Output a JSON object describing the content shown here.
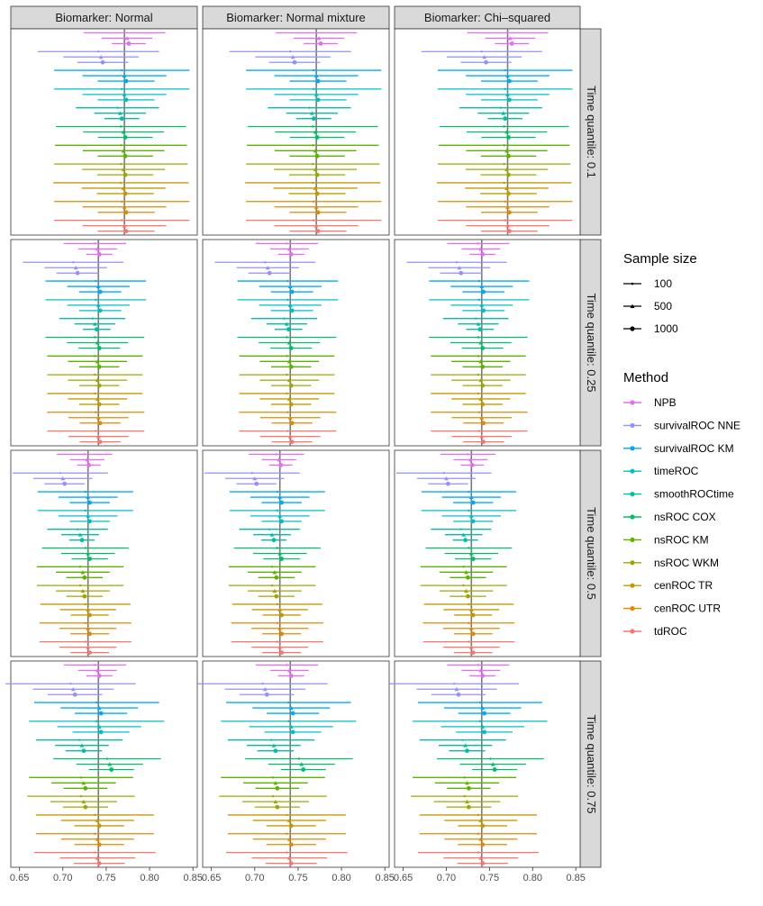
{
  "chart_data": {
    "type": "scatter",
    "chart_kind": "faceted forest plot (point estimate with interval)",
    "x_axis": {
      "range": [
        0.64,
        0.855
      ],
      "ticks": [
        0.65,
        0.7,
        0.75,
        0.8,
        0.85
      ],
      "tick_labels": [
        "0.65",
        "0.70",
        "0.75",
        "0.80",
        "0.85"
      ]
    },
    "columns": [
      {
        "key": "normal",
        "label": "Biomarker: Normal"
      },
      {
        "key": "mixture",
        "label": "Biomarker: Normal mixture"
      },
      {
        "key": "chisq",
        "label": "Biomarker: Chi–squared"
      }
    ],
    "rows": [
      {
        "label": "Time quantile: 0.1",
        "true_value": 0.771,
        "estimates": [
          0.774,
          0.744,
          0.771,
          0.771,
          0.766,
          0.77,
          0.77,
          0.77,
          0.77,
          0.771,
          0.771
        ],
        "halfwidth_100": [
          0.047,
          0.07,
          0.078,
          0.078,
          0.048,
          0.075,
          0.076,
          0.077,
          0.078,
          0.078,
          0.078
        ]
      },
      {
        "label": "Time quantile: 0.25",
        "true_value": 0.741,
        "estimates": [
          0.74,
          0.715,
          0.741,
          0.741,
          0.737,
          0.74,
          0.74,
          0.74,
          0.74,
          0.741,
          0.741
        ],
        "halfwidth_100": [
          0.036,
          0.058,
          0.058,
          0.058,
          0.038,
          0.057,
          0.055,
          0.055,
          0.055,
          0.056,
          0.056
        ]
      },
      {
        "label": "Time quantile: 0.5",
        "true_value": 0.729,
        "estimates": [
          0.728,
          0.7,
          0.729,
          0.729,
          0.72,
          0.729,
          0.723,
          0.723,
          0.729,
          0.729,
          0.729
        ],
        "halfwidth_100": [
          0.032,
          0.055,
          0.055,
          0.055,
          0.035,
          0.05,
          0.05,
          0.05,
          0.052,
          0.053,
          0.053
        ]
      },
      {
        "label": "Time quantile: 0.75",
        "true_value": 0.741,
        "estimates": [
          0.74,
          0.712,
          0.742,
          0.742,
          0.722,
          0.754,
          0.724,
          0.724,
          0.74,
          0.74,
          0.74
        ],
        "halfwidth_100": [
          0.036,
          0.075,
          0.072,
          0.078,
          0.05,
          0.062,
          0.06,
          0.062,
          0.068,
          0.068,
          0.07
        ]
      }
    ],
    "legend": {
      "size_title": "Sample size",
      "sizes": [
        "100",
        "500",
        "1000"
      ],
      "method_title": "Method",
      "methods": [
        {
          "name": "NPB",
          "color": "#E76BF3"
        },
        {
          "name": "survivalROC NNE",
          "color": "#9590FF"
        },
        {
          "name": "survivalROC KM",
          "color": "#00A9FF"
        },
        {
          "name": "timeROC",
          "color": "#00BFC4"
        },
        {
          "name": "smoothROCtime",
          "color": "#00BFA2"
        },
        {
          "name": "nsROC COX",
          "color": "#00BE67"
        },
        {
          "name": "nsROC KM",
          "color": "#5EB300"
        },
        {
          "name": "nsROC WKM",
          "color": "#9EA700"
        },
        {
          "name": "cenROC TR",
          "color": "#C49A00"
        },
        {
          "name": "cenROC UTR",
          "color": "#E58700"
        },
        {
          "name": "tdROC",
          "color": "#F8766D"
        }
      ]
    }
  }
}
